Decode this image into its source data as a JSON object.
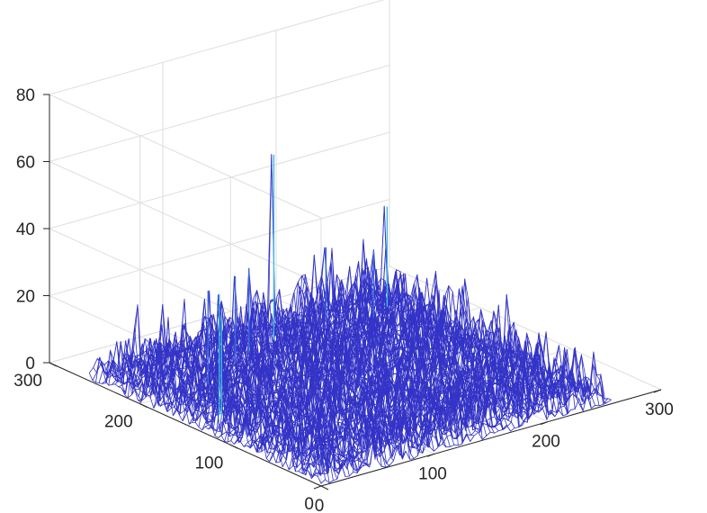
{
  "chart_data": {
    "type": "surface",
    "title": "",
    "xlabel": "",
    "ylabel": "",
    "zlabel": "",
    "xlim": [
      0,
      300
    ],
    "ylim": [
      0,
      300
    ],
    "zlim": [
      0,
      80
    ],
    "grid": true,
    "box": true,
    "x_ticks": [
      {
        "value": 0,
        "label": "0"
      },
      {
        "value": 100,
        "label": "100"
      },
      {
        "value": 200,
        "label": "200"
      },
      {
        "value": 300,
        "label": "300"
      }
    ],
    "y_ticks": [
      {
        "value": 0,
        "label": "0"
      },
      {
        "value": 100,
        "label": "100"
      },
      {
        "value": 200,
        "label": "200"
      },
      {
        "value": 300,
        "label": "300"
      }
    ],
    "z_ticks": [
      {
        "value": 0,
        "label": "0"
      },
      {
        "value": 20,
        "label": "20"
      },
      {
        "value": 40,
        "label": "40"
      },
      {
        "value": 60,
        "label": "60"
      },
      {
        "value": 80,
        "label": "80"
      }
    ],
    "surface_extent": {
      "x": [
        0,
        256
      ],
      "y": [
        0,
        256
      ]
    },
    "colormap": {
      "low": "#2c2cc0",
      "mid": "#3d6ce0",
      "high": "#3fb8e0"
    },
    "peaks": [
      {
        "x": 150,
        "y": 240,
        "z": 55
      },
      {
        "x": 30,
        "y": 150,
        "z": 36
      },
      {
        "x": 28,
        "y": 145,
        "z": 30
      },
      {
        "x": 250,
        "y": 240,
        "z": 30
      },
      {
        "x": 60,
        "y": 200,
        "z": 28
      },
      {
        "x": 100,
        "y": 220,
        "z": 26
      },
      {
        "x": 120,
        "y": 230,
        "z": 25
      },
      {
        "x": 200,
        "y": 245,
        "z": 22
      },
      {
        "x": 230,
        "y": 230,
        "z": 20
      }
    ]
  }
}
